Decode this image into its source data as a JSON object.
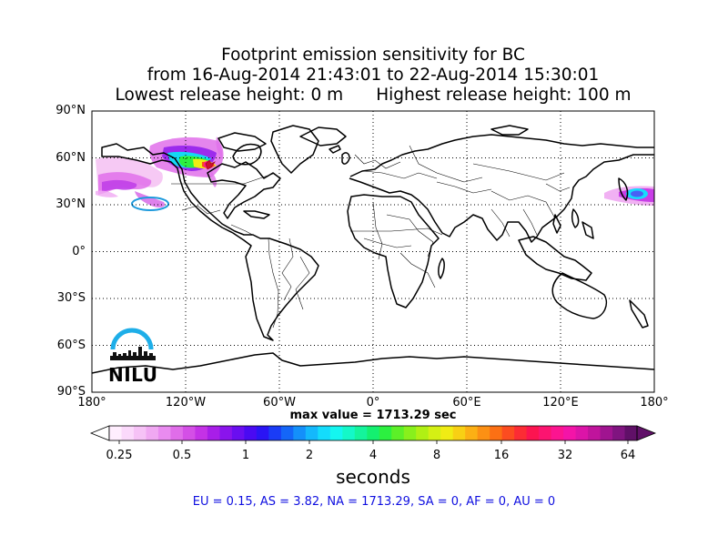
{
  "title": {
    "line1": "Footprint emission sensitivity for BC",
    "line2": "from 16-Aug-2014 21:43:01 to 22-Aug-2014 15:30:01",
    "lowest": "Lowest release height: 0 m",
    "highest": "Highest release height: 100 m"
  },
  "map": {
    "projection": "cylindrical",
    "lat_ticks": [
      "90°N",
      "60°N",
      "30°N",
      "0°",
      "30°S",
      "60°S",
      "90°S"
    ],
    "lon_ticks": [
      "180°",
      "120°W",
      "60°W",
      "0°",
      "60°E",
      "120°E",
      "180°"
    ],
    "grid": "dotted"
  },
  "max_value": "max value = 1713.29 sec",
  "colorbar": {
    "ticks": [
      "0.25",
      "0.5",
      "1",
      "2",
      "4",
      "8",
      "16",
      "32",
      "64"
    ],
    "label": "seconds",
    "colors": [
      "#ffeefe",
      "#fbd9fb",
      "#f6c2f6",
      "#f0a8f2",
      "#e98bf0",
      "#e06de9",
      "#d44fe6",
      "#c432e6",
      "#a81ee8",
      "#8a14ec",
      "#6a0ef0",
      "#4a0af2",
      "#2a14f4",
      "#1a3cf6",
      "#1466f8",
      "#1490fa",
      "#14b8fc",
      "#14dcfc",
      "#14f6f0",
      "#14f8c8",
      "#14f49c",
      "#14f070",
      "#2cf040",
      "#5cf028",
      "#88f01c",
      "#b0f014",
      "#d4f014",
      "#f0ec14",
      "#f8d014",
      "#fcb014",
      "#fc9014",
      "#fc7014",
      "#fc4c20",
      "#fc2c34",
      "#fc1450",
      "#fc1470",
      "#fc1490",
      "#f414a8",
      "#dc14a8",
      "#c0149c",
      "#a01490",
      "#801480",
      "#601068"
    ],
    "under_color": "#ffffff",
    "over_color": "#601068"
  },
  "region_summary": "EU = 0.15,  AS = 3.82,  NA = 1713.29,  SA = 0,  AF = 0,  AU = 0",
  "region_summary_color": "#1010e0",
  "logo": {
    "text": "NILU",
    "arc_color": "#1eaee8"
  }
}
